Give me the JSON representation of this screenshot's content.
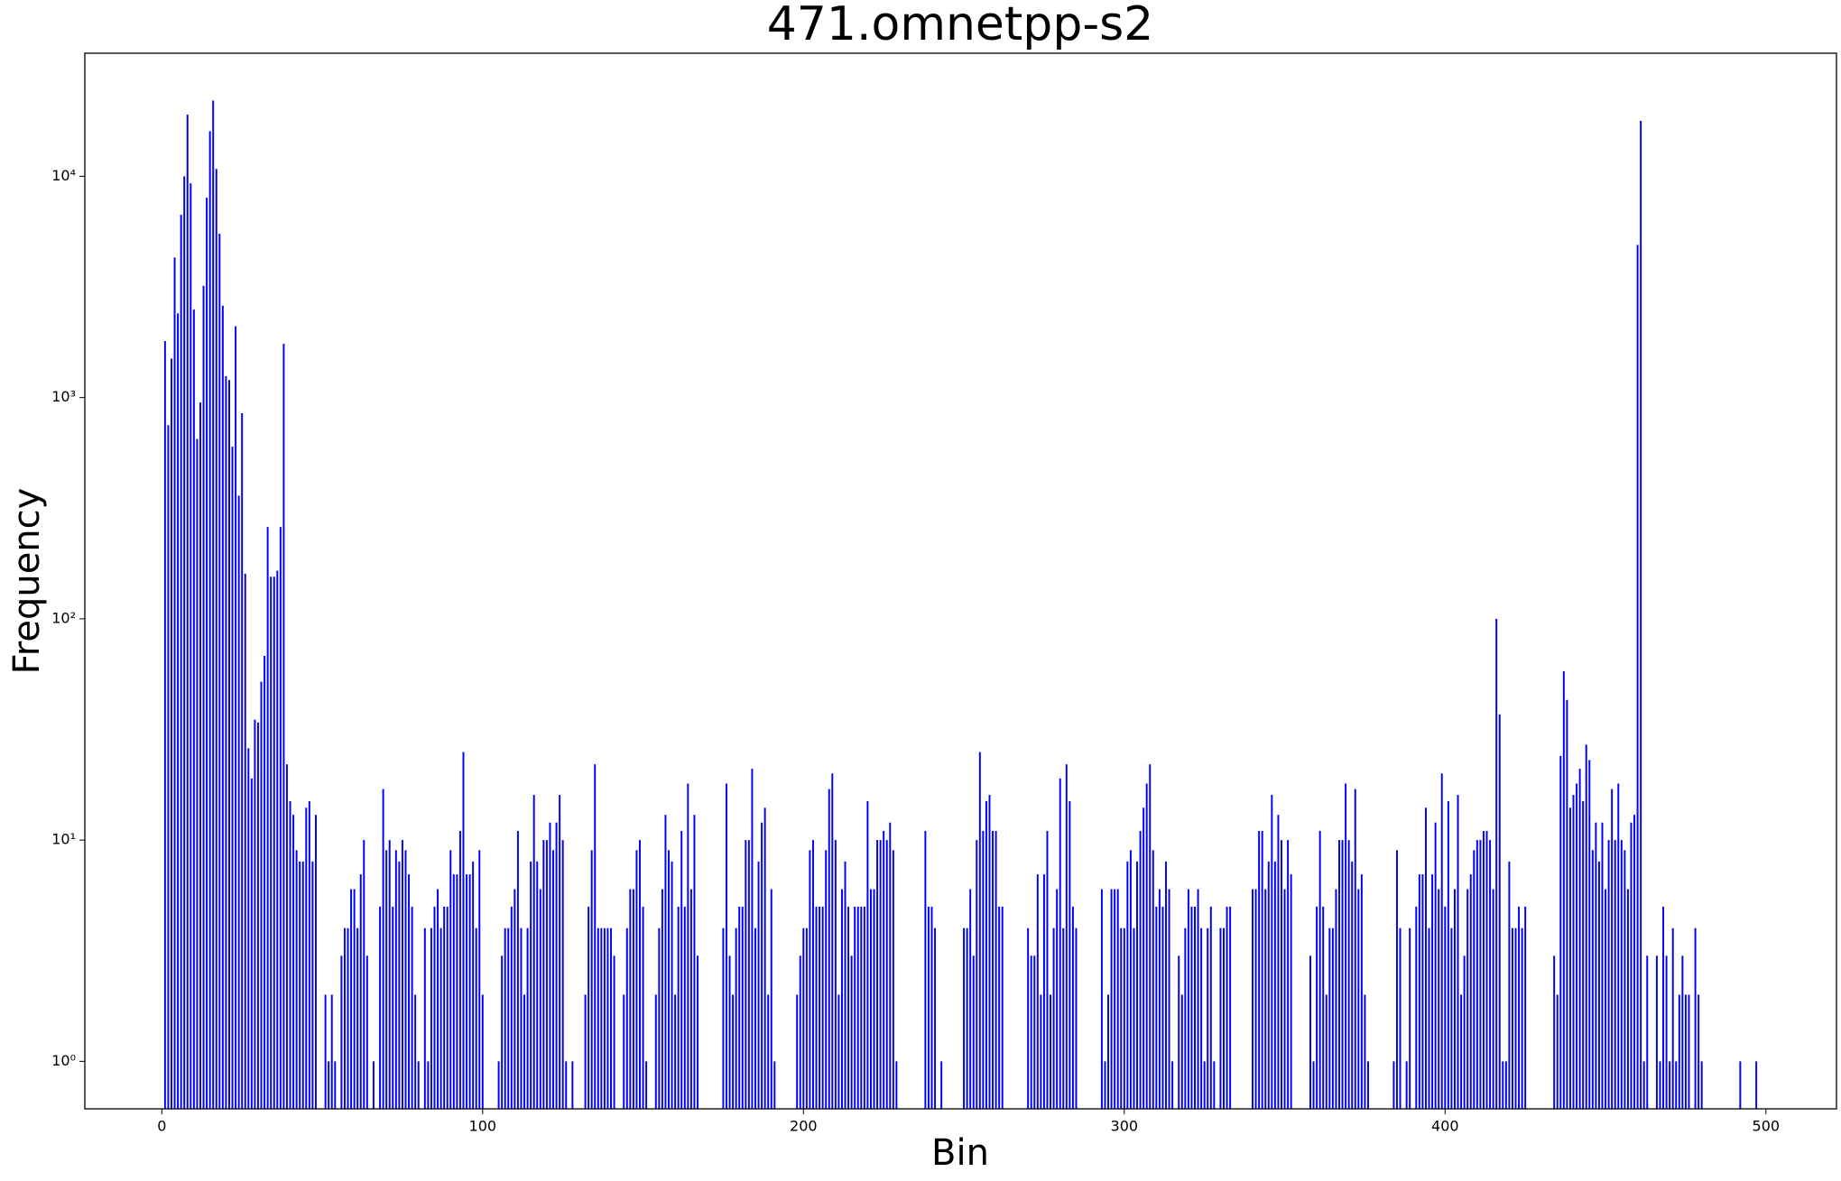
{
  "chart_data": {
    "type": "bar",
    "title": "471.omnetpp-s2",
    "x_label": "Bin",
    "y_label": "Frequency",
    "color": "#0000ff",
    "log_scale": true,
    "xlim": [
      -24,
      522
    ],
    "xticks": [
      0,
      100,
      200,
      300,
      400,
      500
    ],
    "ylim": [
      0.61,
      36000
    ],
    "yticks": [
      {
        "value": 1,
        "label": "10⁰"
      },
      {
        "value": 10,
        "label": "10¹"
      },
      {
        "value": 100,
        "label": "10²"
      },
      {
        "value": 1000,
        "label": "10³"
      },
      {
        "value": 10000,
        "label": "10⁴"
      }
    ],
    "x": [
      1,
      2,
      3,
      4,
      5,
      6,
      7,
      8,
      9,
      10,
      11,
      12,
      13,
      14,
      15,
      16,
      17,
      18,
      19,
      20,
      21,
      22,
      23,
      24,
      25,
      26,
      27,
      28,
      29,
      30,
      31,
      32,
      33,
      34,
      35,
      36,
      37,
      38,
      39,
      40,
      41,
      42,
      43,
      44,
      45,
      46,
      47,
      48,
      51,
      52,
      53,
      54,
      56,
      57,
      58,
      59,
      60,
      61,
      62,
      63,
      64,
      66,
      68,
      69,
      70,
      71,
      72,
      73,
      74,
      75,
      76,
      77,
      78,
      79,
      80,
      82,
      83,
      84,
      85,
      86,
      87,
      88,
      89,
      90,
      91,
      92,
      93,
      94,
      95,
      96,
      97,
      98,
      99,
      100,
      105,
      106,
      107,
      108,
      109,
      110,
      111,
      112,
      113,
      114,
      115,
      116,
      117,
      118,
      119,
      120,
      121,
      122,
      123,
      124,
      125,
      126,
      128,
      132,
      133,
      134,
      135,
      136,
      137,
      138,
      139,
      140,
      141,
      144,
      145,
      146,
      147,
      148,
      149,
      150,
      151,
      154,
      155,
      156,
      157,
      158,
      159,
      160,
      161,
      162,
      163,
      164,
      165,
      166,
      167,
      175,
      176,
      177,
      178,
      179,
      180,
      181,
      182,
      183,
      184,
      185,
      186,
      187,
      188,
      189,
      190,
      191,
      198,
      199,
      200,
      201,
      202,
      203,
      204,
      205,
      206,
      207,
      208,
      209,
      210,
      211,
      212,
      213,
      214,
      215,
      216,
      217,
      218,
      219,
      220,
      221,
      222,
      223,
      224,
      225,
      226,
      227,
      228,
      229,
      238,
      239,
      240,
      241,
      243,
      250,
      251,
      252,
      253,
      254,
      255,
      256,
      257,
      258,
      259,
      260,
      261,
      262,
      270,
      271,
      272,
      273,
      274,
      275,
      276,
      277,
      278,
      279,
      280,
      281,
      282,
      283,
      284,
      285,
      293,
      294,
      295,
      296,
      297,
      298,
      299,
      300,
      301,
      302,
      303,
      304,
      305,
      306,
      307,
      308,
      309,
      310,
      311,
      312,
      313,
      314,
      315,
      317,
      318,
      319,
      320,
      321,
      322,
      323,
      324,
      325,
      326,
      327,
      328,
      330,
      331,
      332,
      333,
      340,
      341,
      342,
      343,
      344,
      345,
      346,
      347,
      348,
      349,
      350,
      351,
      352,
      358,
      359,
      360,
      361,
      362,
      363,
      364,
      365,
      366,
      367,
      368,
      369,
      370,
      371,
      372,
      373,
      374,
      375,
      376,
      384,
      385,
      386,
      388,
      389,
      391,
      392,
      393,
      394,
      395,
      396,
      397,
      398,
      399,
      400,
      401,
      402,
      403,
      404,
      405,
      406,
      407,
      408,
      409,
      410,
      411,
      412,
      413,
      414,
      415,
      416,
      417,
      418,
      419,
      420,
      421,
      422,
      423,
      424,
      425,
      434,
      435,
      436,
      437,
      438,
      439,
      440,
      441,
      442,
      443,
      444,
      445,
      446,
      447,
      448,
      449,
      450,
      451,
      452,
      453,
      454,
      455,
      456,
      457,
      458,
      459,
      460,
      461,
      462,
      463,
      466,
      467,
      468,
      469,
      470,
      471,
      472,
      473,
      474,
      475,
      476,
      478,
      479,
      480,
      492,
      497
    ],
    "values": [
      1800,
      750,
      1500,
      4300,
      2400,
      6700,
      10000,
      19000,
      9300,
      2500,
      650,
      950,
      3200,
      8000,
      16000,
      22000,
      10800,
      5500,
      2600,
      1250,
      1200,
      600,
      2100,
      360,
      850,
      160,
      26,
      19,
      35,
      34,
      52,
      68,
      260,
      155,
      155,
      165,
      260,
      1750,
      22,
      15,
      13,
      9,
      8,
      8,
      14,
      15,
      8,
      13,
      2,
      1,
      2,
      1,
      3,
      4,
      4,
      6,
      6,
      4,
      7,
      10,
      3,
      1,
      5,
      17,
      9,
      10,
      5,
      9,
      8,
      10,
      9,
      7,
      5,
      2,
      1,
      4,
      1,
      4,
      5,
      6,
      4,
      5,
      5,
      9,
      7,
      7,
      11,
      25,
      7,
      7,
      8,
      4,
      9,
      2,
      1,
      3,
      4,
      4,
      5,
      6,
      11,
      4,
      2,
      4,
      8,
      16,
      8,
      6,
      10,
      10,
      12,
      9,
      12,
      16,
      10,
      1,
      1,
      2,
      5,
      9,
      22,
      4,
      4,
      4,
      4,
      4,
      3,
      2,
      4,
      6,
      6,
      9,
      10,
      5,
      1,
      2,
      4,
      6,
      13,
      9,
      8,
      2,
      5,
      11,
      5,
      18,
      6,
      13,
      3,
      4,
      18,
      3,
      2,
      4,
      5,
      5,
      10,
      10,
      21,
      4,
      8,
      12,
      14,
      2,
      6,
      1,
      2,
      3,
      4,
      4,
      9,
      10,
      5,
      5,
      5,
      9,
      17,
      20,
      10,
      2,
      6,
      8,
      5,
      3,
      5,
      5,
      5,
      5,
      15,
      6,
      6,
      10,
      10,
      11,
      10,
      12,
      9,
      1,
      11,
      5,
      5,
      4,
      1,
      4,
      4,
      6,
      3,
      10,
      25,
      11,
      15,
      16,
      11,
      11,
      5,
      5,
      4,
      3,
      3,
      7,
      2,
      7,
      11,
      2,
      4,
      6,
      19,
      4,
      22,
      15,
      5,
      4,
      6,
      1,
      2,
      6,
      6,
      6,
      4,
      4,
      8,
      9,
      4,
      8,
      11,
      14,
      18,
      22,
      9,
      5,
      6,
      5,
      8,
      6,
      1,
      3,
      2,
      4,
      6,
      5,
      5,
      6,
      4,
      1,
      4,
      5,
      1,
      4,
      4,
      5,
      5,
      6,
      6,
      11,
      11,
      6,
      8,
      16,
      8,
      13,
      10,
      6,
      10,
      7,
      3,
      1,
      5,
      11,
      5,
      2,
      4,
      4,
      6,
      10,
      10,
      18,
      10,
      8,
      17,
      6,
      7,
      2,
      1,
      1,
      9,
      4,
      1,
      4,
      5,
      7,
      7,
      14,
      4,
      7,
      12,
      6,
      20,
      5,
      15,
      4,
      6,
      16,
      2,
      3,
      6,
      7,
      9,
      10,
      10,
      11,
      11,
      10,
      6,
      100,
      37,
      1,
      1,
      8,
      4,
      4,
      5,
      4,
      5,
      3,
      2,
      24,
      58,
      43,
      14,
      16,
      18,
      21,
      15,
      27,
      23,
      9,
      12,
      8,
      12,
      6,
      10,
      17,
      10,
      18,
      10,
      9,
      6,
      12,
      13,
      4900,
      17800,
      1,
      3,
      3,
      1,
      5,
      3,
      1,
      4,
      1,
      2,
      3,
      2,
      2,
      4,
      2,
      1,
      1,
      1
    ]
  }
}
